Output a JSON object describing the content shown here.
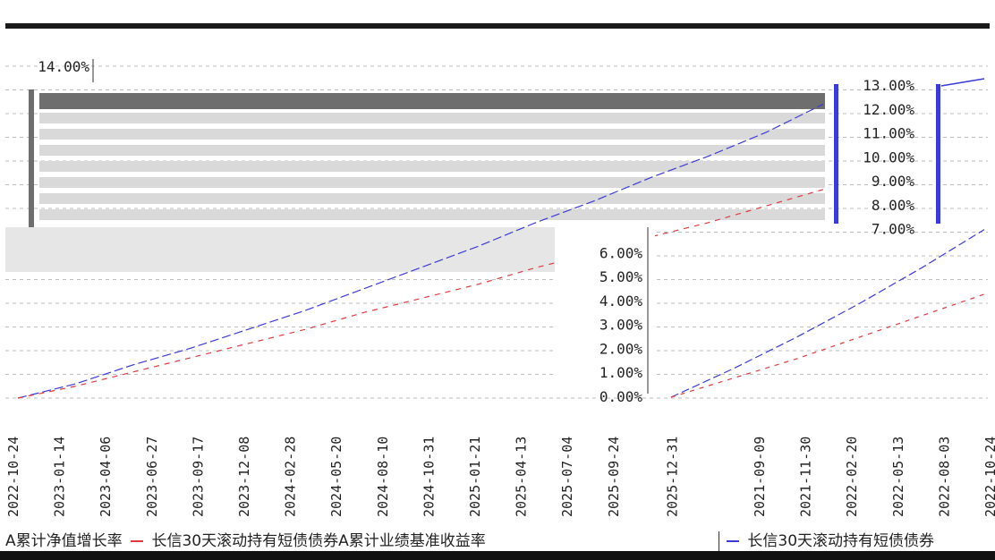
{
  "header": {
    "title": "",
    "subtitle": ""
  },
  "colors": {
    "nav": "#3b3bd9",
    "benchmark": "#e0393e",
    "grid": "#bdbdbd",
    "band": "#d9d9d9",
    "band_dark": "#6e6e6e"
  },
  "chart_data": [
    {
      "type": "line",
      "title": "",
      "ylim": [
        0,
        14
      ],
      "y_ticks": [
        "14.00%"
      ],
      "categories": [
        "2022-10-24",
        "2023-01-14",
        "2023-04-06",
        "2023-06-27",
        "2023-09-17",
        "2023-12-08",
        "2024-02-28",
        "2024-05-20",
        "2024-08-10",
        "2024-10-31",
        "2025-01-21",
        "2025-04-13",
        "2025-07-04",
        "2025-09-24",
        "2025-12-31"
      ],
      "series": [
        {
          "name": "A累计净值增长率",
          "values": [
            0.0,
            0.6,
            1.4,
            2.1,
            2.9,
            3.7,
            4.6,
            5.5,
            6.4,
            7.4,
            8.3,
            9.3,
            10.2,
            11.2,
            12.4
          ]
        },
        {
          "name": "长信30天滚动持有短债债券A累计业绩基准收益率",
          "values": [
            0.0,
            0.5,
            1.1,
            1.7,
            2.3,
            2.9,
            3.6,
            4.2,
            4.8,
            5.5,
            6.1,
            6.8,
            7.4,
            8.1,
            8.8
          ]
        }
      ],
      "legend": "bottom"
    },
    {
      "type": "line",
      "title": "",
      "ylim": [
        0,
        13
      ],
      "y_ticks": [
        "0.00%",
        "1.00%",
        "2.00%",
        "3.00%",
        "4.00%",
        "5.00%",
        "6.00%",
        "7.00%",
        "8.00%",
        "9.00%",
        "10.00%",
        "11.00%",
        "12.00%",
        "13.00%"
      ],
      "categories": [
        "2021-09-09",
        "2021-11-30",
        "2022-02-20",
        "2022-05-13",
        "2022-08-03",
        "2022-10-24"
      ],
      "series": [
        {
          "name": "长信30天滚动持有短债债券",
          "values": [
            0.0,
            1.2,
            2.5,
            3.9,
            5.4,
            7.0
          ]
        },
        {
          "name": "",
          "values": [
            0.0,
            0.8,
            1.6,
            2.5,
            3.4,
            4.3
          ]
        }
      ],
      "legend": "bottom"
    }
  ]
}
